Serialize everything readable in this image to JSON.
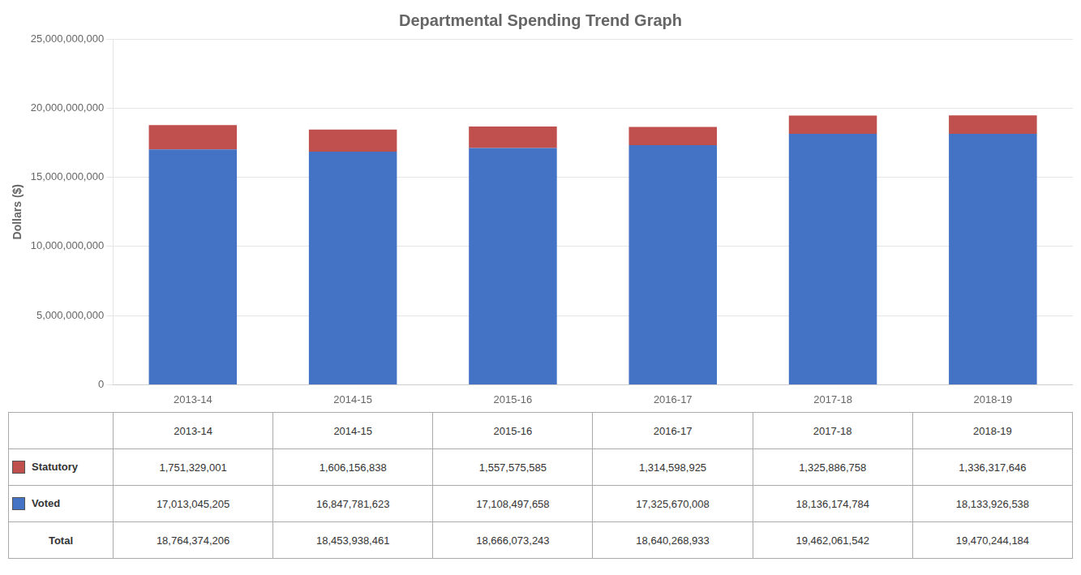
{
  "chart_data": {
    "type": "bar",
    "title": "Departmental Spending Trend Graph",
    "categories": [
      "2013-14",
      "2014-15",
      "2015-16",
      "2016-17",
      "2017-18",
      "2018-19"
    ],
    "stacked": true,
    "series": [
      {
        "name": "Voted",
        "color": "#4472C4",
        "values": [
          17013045205,
          16847781623,
          17108497658,
          17325670008,
          18136174784,
          18133926538
        ],
        "value_labels": [
          "17,013,045,205",
          "16,847,781,623",
          "17,108,497,658",
          "17,325,670,008",
          "18,136,174,784",
          "18,133,926,538"
        ]
      },
      {
        "name": "Statutory",
        "color": "#C0504D",
        "values": [
          1751329001,
          1606156838,
          1557575585,
          1314598925,
          1325886758,
          1336317646
        ],
        "value_labels": [
          "1,751,329,001",
          "1,606,156,838",
          "1,557,575,585",
          "1,314,598,925",
          "1,325,886,758",
          "1,336,317,646"
        ]
      }
    ],
    "total": {
      "name": "Total",
      "values": [
        18764374206,
        18453938461,
        18666073243,
        18640268933,
        19462061542,
        19470244184
      ],
      "value_labels": [
        "18,764,374,206",
        "18,453,938,461",
        "18,666,073,243",
        "18,640,268,933",
        "19,462,061,542",
        "19,470,244,184"
      ]
    },
    "ylabel": "Dollars ($)",
    "ylim": [
      0,
      25000000000
    ],
    "yticks": [
      0,
      {
        "value": 5000000000,
        "label": "5,000,000,000"
      },
      {
        "value": 10000000000,
        "label": "10,000,000,000"
      },
      {
        "value": 15000000000,
        "label": "15,000,000,000"
      },
      {
        "value": 20000000000,
        "label": "20,000,000,000"
      },
      {
        "value": 25000000000,
        "label": "25,000,000,000"
      }
    ],
    "grid": true
  }
}
